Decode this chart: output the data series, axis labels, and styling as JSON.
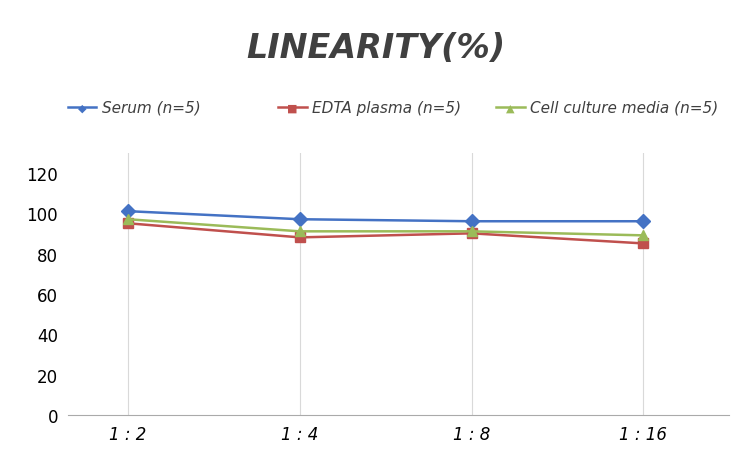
{
  "title": "LINEARITY(%)",
  "x_labels": [
    "1 : 2",
    "1 : 4",
    "1 : 8",
    "1 : 16"
  ],
  "x_positions": [
    0,
    1,
    2,
    3
  ],
  "series": [
    {
      "label": "Serum (n=5)",
      "values": [
        101,
        97,
        96,
        96
      ],
      "color": "#4472C4",
      "marker": "D",
      "linewidth": 1.8
    },
    {
      "label": "EDTA plasma (n=5)",
      "values": [
        95,
        88,
        90,
        85
      ],
      "color": "#C0504D",
      "marker": "s",
      "linewidth": 1.8
    },
    {
      "label": "Cell culture media (n=5)",
      "values": [
        97,
        91,
        91,
        89
      ],
      "color": "#9BBB59",
      "marker": "^",
      "linewidth": 1.8
    }
  ],
  "ylim": [
    0,
    130
  ],
  "yticks": [
    0,
    20,
    40,
    60,
    80,
    100,
    120
  ],
  "xlim": [
    -0.35,
    3.5
  ],
  "background_color": "#FFFFFF",
  "grid_color": "#D9D9D9",
  "title_fontsize": 24,
  "legend_fontsize": 11,
  "tick_fontsize": 12
}
